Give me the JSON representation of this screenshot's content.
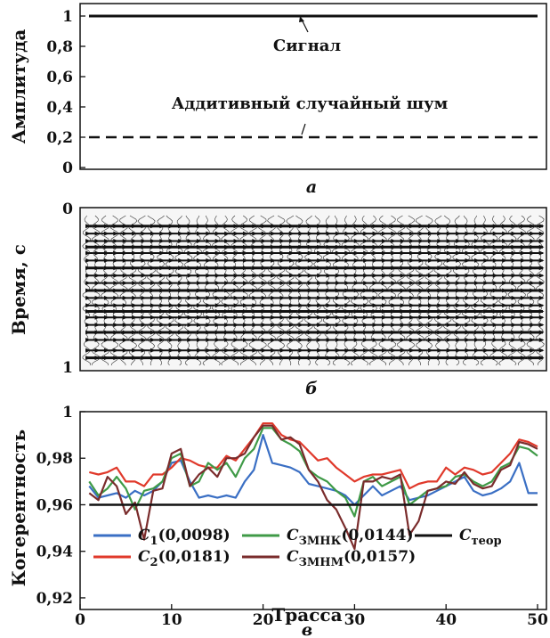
{
  "chart_data": [
    {
      "type": "line",
      "panel_label": "а",
      "ylabel": "Амплитуда",
      "ylim": [
        0,
        1
      ],
      "yticks": [
        "0",
        "0,2",
        "0,4",
        "0,6",
        "0,8",
        "1"
      ],
      "ytick_values": [
        0,
        0.2,
        0.4,
        0.6,
        0.8,
        1
      ],
      "series": [
        {
          "name": "Сигнал",
          "values": [
            1,
            1
          ],
          "style": "solid"
        },
        {
          "name": "Аддитивный случайный шум",
          "values": [
            0.2,
            0.2
          ],
          "style": "dashed"
        }
      ],
      "annotations": [
        "Сигнал",
        "Аддитивный случайный шум"
      ]
    },
    {
      "type": "seismic",
      "panel_label": "б",
      "ylabel": "Время, с",
      "ylim": [
        0,
        1
      ],
      "yticks": [
        "0",
        "1"
      ],
      "traces": 50,
      "reflector_times": [
        0.07,
        0.12,
        0.17,
        0.21,
        0.25,
        0.3,
        0.35,
        0.4,
        0.45,
        0.5,
        0.55,
        0.6,
        0.64,
        0.68,
        0.73,
        0.78,
        0.83,
        0.9,
        0.95
      ]
    },
    {
      "type": "line",
      "panel_label": "в",
      "xlabel": "Трасса",
      "ylabel": "Когерентность",
      "xlim": [
        0,
        50
      ],
      "ylim": [
        0.915,
        1.0
      ],
      "xticks": [
        "0",
        "10",
        "20",
        "30",
        "40",
        "50"
      ],
      "xtick_values": [
        0,
        10,
        20,
        30,
        40,
        50
      ],
      "yticks": [
        "0,92",
        "0,94",
        "0,96",
        "0,98",
        "1"
      ],
      "ytick_values": [
        0.92,
        0.94,
        0.96,
        0.98,
        1.0
      ],
      "x": [
        1,
        2,
        3,
        4,
        5,
        6,
        7,
        8,
        9,
        10,
        11,
        12,
        13,
        14,
        15,
        16,
        17,
        18,
        19,
        20,
        21,
        22,
        23,
        24,
        25,
        26,
        27,
        28,
        29,
        30,
        31,
        32,
        33,
        34,
        35,
        36,
        37,
        38,
        39,
        40,
        41,
        42,
        43,
        44,
        45,
        46,
        47,
        48,
        49,
        50
      ],
      "series": [
        {
          "name": "C",
          "sub": "1",
          "value": "(0,0098)",
          "color": "#3a6fc4",
          "values": [
            0.968,
            0.963,
            0.964,
            0.965,
            0.963,
            0.966,
            0.964,
            0.966,
            0.97,
            0.978,
            0.979,
            0.97,
            0.963,
            0.964,
            0.963,
            0.964,
            0.963,
            0.97,
            0.975,
            0.99,
            0.978,
            0.977,
            0.976,
            0.974,
            0.969,
            0.968,
            0.967,
            0.966,
            0.964,
            0.96,
            0.964,
            0.968,
            0.964,
            0.966,
            0.968,
            0.962,
            0.963,
            0.964,
            0.966,
            0.968,
            0.97,
            0.972,
            0.966,
            0.964,
            0.965,
            0.967,
            0.97,
            0.978,
            0.965,
            0.965
          ]
        },
        {
          "name": "C",
          "sub": "2",
          "value": "(0,0181)",
          "color": "#e0392b",
          "values": [
            0.974,
            0.973,
            0.974,
            0.976,
            0.97,
            0.97,
            0.968,
            0.973,
            0.973,
            0.976,
            0.98,
            0.979,
            0.977,
            0.976,
            0.976,
            0.981,
            0.979,
            0.984,
            0.989,
            0.995,
            0.995,
            0.99,
            0.988,
            0.987,
            0.983,
            0.979,
            0.98,
            0.976,
            0.973,
            0.97,
            0.972,
            0.973,
            0.973,
            0.974,
            0.975,
            0.967,
            0.969,
            0.97,
            0.97,
            0.976,
            0.973,
            0.976,
            0.975,
            0.973,
            0.974,
            0.978,
            0.982,
            0.988,
            0.987,
            0.985
          ]
        },
        {
          "name": "C",
          "sub": "ЗМНК",
          "value": "(0,0144)",
          "color": "#3f9a47",
          "values": [
            0.97,
            0.964,
            0.967,
            0.972,
            0.967,
            0.958,
            0.966,
            0.967,
            0.97,
            0.98,
            0.982,
            0.968,
            0.97,
            0.978,
            0.975,
            0.978,
            0.972,
            0.98,
            0.984,
            0.993,
            0.993,
            0.988,
            0.986,
            0.983,
            0.975,
            0.972,
            0.97,
            0.966,
            0.963,
            0.955,
            0.97,
            0.972,
            0.968,
            0.97,
            0.972,
            0.96,
            0.963,
            0.966,
            0.967,
            0.968,
            0.972,
            0.973,
            0.97,
            0.968,
            0.97,
            0.976,
            0.978,
            0.985,
            0.984,
            0.981
          ]
        },
        {
          "name": "C",
          "sub": "ЗМНМ",
          "value": "(0,0157)",
          "color": "#7a2c2c",
          "values": [
            0.965,
            0.962,
            0.972,
            0.968,
            0.956,
            0.961,
            0.945,
            0.966,
            0.967,
            0.982,
            0.984,
            0.968,
            0.973,
            0.976,
            0.972,
            0.98,
            0.98,
            0.982,
            0.989,
            0.994,
            0.994,
            0.988,
            0.989,
            0.986,
            0.975,
            0.97,
            0.962,
            0.958,
            0.95,
            0.941,
            0.97,
            0.97,
            0.972,
            0.971,
            0.973,
            0.947,
            0.953,
            0.966,
            0.967,
            0.97,
            0.969,
            0.974,
            0.969,
            0.967,
            0.968,
            0.975,
            0.977,
            0.987,
            0.986,
            0.984
          ]
        },
        {
          "name": "C",
          "sub": "теор",
          "value": "",
          "color": "#111111",
          "values": [
            0.96,
            0.96,
            0.96,
            0.96,
            0.96,
            0.96,
            0.96,
            0.96,
            0.96,
            0.96,
            0.96,
            0.96,
            0.96,
            0.96,
            0.96,
            0.96,
            0.96,
            0.96,
            0.96,
            0.96,
            0.96,
            0.96,
            0.96,
            0.96,
            0.96,
            0.96,
            0.96,
            0.96,
            0.96,
            0.96,
            0.96,
            0.96,
            0.96,
            0.96,
            0.96,
            0.96,
            0.96,
            0.96,
            0.96,
            0.96,
            0.96,
            0.96,
            0.96,
            0.96,
            0.96,
            0.96,
            0.96,
            0.96,
            0.96,
            0.96
          ]
        }
      ],
      "legend": "bottom"
    }
  ]
}
